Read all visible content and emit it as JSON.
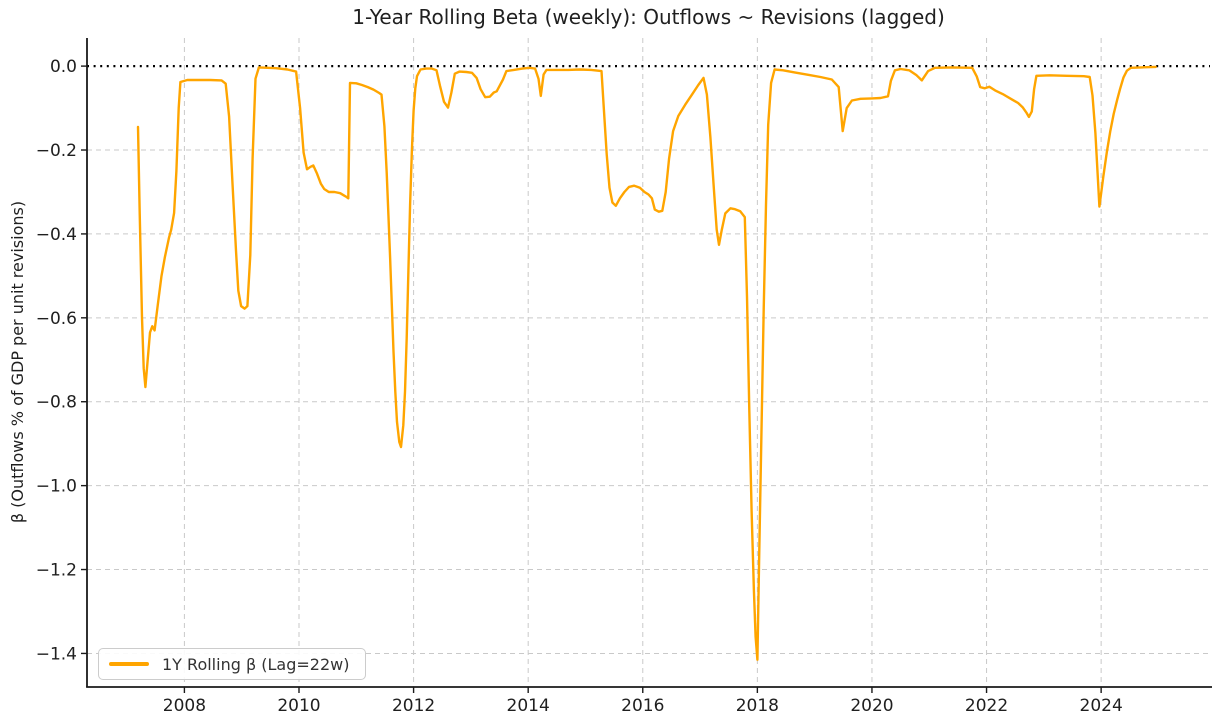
{
  "chart_data": {
    "type": "line",
    "title": "1-Year Rolling Beta (weekly): Outflows ~ Revisions (lagged)",
    "xlabel": "",
    "ylabel": "β (Outflows % of GDP per unit revisions)",
    "xlim": [
      2006.3,
      2025.9
    ],
    "ylim": [
      -1.48,
      0.067
    ],
    "grid": "dashed",
    "grid_color": "#c9c9c9",
    "axis_color": "#1a1a1a",
    "text_color": "#1f1f1f",
    "zero_line": {
      "value": 0.0,
      "style": "dotted",
      "color": "#000000"
    },
    "x_tick_values": [
      2008,
      2010,
      2012,
      2014,
      2016,
      2018,
      2020,
      2022,
      2024
    ],
    "x_tick_labels": [
      "2008",
      "2010",
      "2012",
      "2014",
      "2016",
      "2018",
      "2020",
      "2022",
      "2024"
    ],
    "y_tick_values": [
      0.0,
      -0.2,
      -0.4,
      -0.6,
      -0.8,
      -1.0,
      -1.2,
      -1.4
    ],
    "y_tick_labels": [
      "0.0",
      "−0.2",
      "−0.4",
      "−0.6",
      "−0.8",
      "−1.0",
      "−1.2",
      "−1.4"
    ],
    "legend": {
      "position": "lower left",
      "entries": [
        {
          "label": "1Y Rolling β (Lag=22w)",
          "color": "#FFA500"
        }
      ]
    },
    "series": [
      {
        "name": "1Y Rolling β (Lag=22w)",
        "color": "#FFA500",
        "line_width": 2.4,
        "points": [
          [
            2007.19,
            -0.145
          ],
          [
            2007.22,
            -0.35
          ],
          [
            2007.26,
            -0.6
          ],
          [
            2007.29,
            -0.72
          ],
          [
            2007.32,
            -0.765
          ],
          [
            2007.36,
            -0.7
          ],
          [
            2007.4,
            -0.635
          ],
          [
            2007.44,
            -0.62
          ],
          [
            2007.48,
            -0.63
          ],
          [
            2007.54,
            -0.565
          ],
          [
            2007.6,
            -0.5
          ],
          [
            2007.66,
            -0.455
          ],
          [
            2007.73,
            -0.41
          ],
          [
            2007.77,
            -0.39
          ],
          [
            2007.82,
            -0.35
          ],
          [
            2007.86,
            -0.25
          ],
          [
            2007.9,
            -0.1
          ],
          [
            2007.93,
            -0.038
          ],
          [
            2008.05,
            -0.033
          ],
          [
            2008.25,
            -0.033
          ],
          [
            2008.45,
            -0.033
          ],
          [
            2008.65,
            -0.034
          ],
          [
            2008.72,
            -0.042
          ],
          [
            2008.78,
            -0.12
          ],
          [
            2008.84,
            -0.28
          ],
          [
            2008.9,
            -0.44
          ],
          [
            2008.94,
            -0.535
          ],
          [
            2008.99,
            -0.572
          ],
          [
            2009.05,
            -0.578
          ],
          [
            2009.1,
            -0.572
          ],
          [
            2009.15,
            -0.45
          ],
          [
            2009.19,
            -0.22
          ],
          [
            2009.24,
            -0.03
          ],
          [
            2009.3,
            -0.003
          ],
          [
            2009.45,
            -0.004
          ],
          [
            2009.6,
            -0.005
          ],
          [
            2009.8,
            -0.008
          ],
          [
            2009.95,
            -0.013
          ],
          [
            2010.02,
            -0.1
          ],
          [
            2010.08,
            -0.206
          ],
          [
            2010.14,
            -0.246
          ],
          [
            2010.2,
            -0.24
          ],
          [
            2010.25,
            -0.237
          ],
          [
            2010.31,
            -0.255
          ],
          [
            2010.38,
            -0.28
          ],
          [
            2010.44,
            -0.293
          ],
          [
            2010.52,
            -0.3
          ],
          [
            2010.62,
            -0.3
          ],
          [
            2010.72,
            -0.303
          ],
          [
            2010.78,
            -0.308
          ],
          [
            2010.83,
            -0.312
          ],
          [
            2010.86,
            -0.315
          ],
          [
            2010.89,
            -0.04
          ],
          [
            2011.0,
            -0.041
          ],
          [
            2011.1,
            -0.045
          ],
          [
            2011.2,
            -0.05
          ],
          [
            2011.3,
            -0.056
          ],
          [
            2011.4,
            -0.064
          ],
          [
            2011.44,
            -0.068
          ],
          [
            2011.49,
            -0.143
          ],
          [
            2011.53,
            -0.254
          ],
          [
            2011.56,
            -0.354
          ],
          [
            2011.59,
            -0.456
          ],
          [
            2011.62,
            -0.568
          ],
          [
            2011.65,
            -0.68
          ],
          [
            2011.68,
            -0.776
          ],
          [
            2011.71,
            -0.848
          ],
          [
            2011.75,
            -0.896
          ],
          [
            2011.78,
            -0.908
          ],
          [
            2011.82,
            -0.856
          ],
          [
            2011.85,
            -0.776
          ],
          [
            2011.88,
            -0.648
          ],
          [
            2011.91,
            -0.488
          ],
          [
            2011.94,
            -0.33
          ],
          [
            2011.97,
            -0.2
          ],
          [
            2012.0,
            -0.106
          ],
          [
            2012.03,
            -0.053
          ],
          [
            2012.06,
            -0.024
          ],
          [
            2012.12,
            -0.008
          ],
          [
            2012.22,
            -0.006
          ],
          [
            2012.32,
            -0.006
          ],
          [
            2012.4,
            -0.01
          ],
          [
            2012.46,
            -0.046
          ],
          [
            2012.53,
            -0.085
          ],
          [
            2012.6,
            -0.099
          ],
          [
            2012.66,
            -0.063
          ],
          [
            2012.72,
            -0.018
          ],
          [
            2012.8,
            -0.013
          ],
          [
            2012.92,
            -0.014
          ],
          [
            2013.02,
            -0.016
          ],
          [
            2013.1,
            -0.028
          ],
          [
            2013.17,
            -0.055
          ],
          [
            2013.25,
            -0.074
          ],
          [
            2013.33,
            -0.073
          ],
          [
            2013.4,
            -0.063
          ],
          [
            2013.45,
            -0.06
          ],
          [
            2013.56,
            -0.032
          ],
          [
            2013.62,
            -0.012
          ],
          [
            2013.75,
            -0.009
          ],
          [
            2013.9,
            -0.006
          ],
          [
            2014.02,
            -0.004
          ],
          [
            2014.12,
            -0.006
          ],
          [
            2014.18,
            -0.03
          ],
          [
            2014.22,
            -0.071
          ],
          [
            2014.27,
            -0.02
          ],
          [
            2014.32,
            -0.009
          ],
          [
            2014.5,
            -0.009
          ],
          [
            2014.7,
            -0.009
          ],
          [
            2014.9,
            -0.008
          ],
          [
            2015.1,
            -0.009
          ],
          [
            2015.28,
            -0.012
          ],
          [
            2015.32,
            -0.1
          ],
          [
            2015.37,
            -0.21
          ],
          [
            2015.42,
            -0.29
          ],
          [
            2015.47,
            -0.325
          ],
          [
            2015.53,
            -0.333
          ],
          [
            2015.6,
            -0.315
          ],
          [
            2015.68,
            -0.3
          ],
          [
            2015.76,
            -0.288
          ],
          [
            2015.85,
            -0.285
          ],
          [
            2015.95,
            -0.29
          ],
          [
            2016.03,
            -0.3
          ],
          [
            2016.1,
            -0.306
          ],
          [
            2016.16,
            -0.315
          ],
          [
            2016.21,
            -0.342
          ],
          [
            2016.28,
            -0.347
          ],
          [
            2016.34,
            -0.345
          ],
          [
            2016.4,
            -0.3
          ],
          [
            2016.46,
            -0.22
          ],
          [
            2016.53,
            -0.155
          ],
          [
            2016.62,
            -0.119
          ],
          [
            2016.74,
            -0.092
          ],
          [
            2016.86,
            -0.068
          ],
          [
            2016.97,
            -0.045
          ],
          [
            2017.06,
            -0.028
          ],
          [
            2017.12,
            -0.068
          ],
          [
            2017.18,
            -0.17
          ],
          [
            2017.24,
            -0.29
          ],
          [
            2017.29,
            -0.39
          ],
          [
            2017.33,
            -0.426
          ],
          [
            2017.38,
            -0.39
          ],
          [
            2017.44,
            -0.351
          ],
          [
            2017.53,
            -0.339
          ],
          [
            2017.61,
            -0.341
          ],
          [
            2017.7,
            -0.346
          ],
          [
            2017.78,
            -0.36
          ],
          [
            2017.82,
            -0.55
          ],
          [
            2017.86,
            -0.82
          ],
          [
            2017.9,
            -1.06
          ],
          [
            2017.94,
            -1.25
          ],
          [
            2017.97,
            -1.36
          ],
          [
            2018.0,
            -1.415
          ],
          [
            2018.03,
            -1.18
          ],
          [
            2018.07,
            -0.88
          ],
          [
            2018.11,
            -0.58
          ],
          [
            2018.15,
            -0.33
          ],
          [
            2018.19,
            -0.14
          ],
          [
            2018.24,
            -0.04
          ],
          [
            2018.3,
            -0.008
          ],
          [
            2018.45,
            -0.01
          ],
          [
            2018.65,
            -0.015
          ],
          [
            2018.9,
            -0.021
          ],
          [
            2019.1,
            -0.026
          ],
          [
            2019.3,
            -0.032
          ],
          [
            2019.42,
            -0.05
          ],
          [
            2019.49,
            -0.155
          ],
          [
            2019.56,
            -0.1
          ],
          [
            2019.65,
            -0.082
          ],
          [
            2019.8,
            -0.078
          ],
          [
            2020.0,
            -0.077
          ],
          [
            2020.15,
            -0.076
          ],
          [
            2020.28,
            -0.072
          ],
          [
            2020.33,
            -0.035
          ],
          [
            2020.4,
            -0.01
          ],
          [
            2020.5,
            -0.007
          ],
          [
            2020.65,
            -0.01
          ],
          [
            2020.78,
            -0.022
          ],
          [
            2020.87,
            -0.034
          ],
          [
            2020.98,
            -0.012
          ],
          [
            2021.1,
            -0.004
          ],
          [
            2021.4,
            -0.003
          ],
          [
            2021.75,
            -0.004
          ],
          [
            2021.83,
            -0.025
          ],
          [
            2021.89,
            -0.05
          ],
          [
            2021.97,
            -0.053
          ],
          [
            2022.05,
            -0.049
          ],
          [
            2022.15,
            -0.058
          ],
          [
            2022.3,
            -0.068
          ],
          [
            2022.45,
            -0.08
          ],
          [
            2022.55,
            -0.088
          ],
          [
            2022.63,
            -0.098
          ],
          [
            2022.7,
            -0.112
          ],
          [
            2022.74,
            -0.121
          ],
          [
            2022.79,
            -0.108
          ],
          [
            2022.83,
            -0.055
          ],
          [
            2022.87,
            -0.023
          ],
          [
            2023.1,
            -0.022
          ],
          [
            2023.4,
            -0.023
          ],
          [
            2023.7,
            -0.024
          ],
          [
            2023.8,
            -0.026
          ],
          [
            2023.85,
            -0.07
          ],
          [
            2023.9,
            -0.16
          ],
          [
            2023.94,
            -0.26
          ],
          [
            2023.97,
            -0.335
          ],
          [
            2024.04,
            -0.262
          ],
          [
            2024.1,
            -0.204
          ],
          [
            2024.16,
            -0.155
          ],
          [
            2024.22,
            -0.114
          ],
          [
            2024.28,
            -0.08
          ],
          [
            2024.33,
            -0.055
          ],
          [
            2024.39,
            -0.027
          ],
          [
            2024.45,
            -0.011
          ],
          [
            2024.52,
            -0.004
          ],
          [
            2024.7,
            -0.003
          ],
          [
            2024.95,
            -0.002
          ]
        ]
      }
    ]
  }
}
